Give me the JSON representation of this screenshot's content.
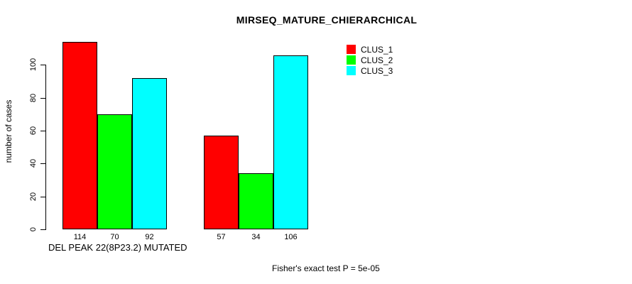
{
  "page": {
    "title": "MIRSEQ_MATURE_CHIERARCHICAL"
  },
  "chart_data": {
    "type": "bar",
    "title": "MIRSEQ_MATURE_CHIERARCHICAL",
    "xlabel": "DEL PEAK 22(8P23.2) MUTATED",
    "ylabel": "number of cases",
    "ylim": [
      0,
      120
    ],
    "yticks": [
      0,
      20,
      40,
      60,
      80,
      100
    ],
    "grid": false,
    "legend_position": "top-right-inside",
    "series": [
      {
        "name": "CLUS_1",
        "color": "#ff0000",
        "values": [
          114,
          57
        ]
      },
      {
        "name": "CLUS_2",
        "color": "#00ff00",
        "values": [
          70,
          34
        ]
      },
      {
        "name": "CLUS_3",
        "color": "#00ffff",
        "values": [
          92,
          106
        ]
      }
    ],
    "groups": [
      {
        "bar_labels": [
          "114",
          "70",
          "92"
        ]
      },
      {
        "bar_labels": [
          "57",
          "34",
          "106"
        ]
      }
    ],
    "pvalue_note": "Fisher's exact test P = 5e-05"
  }
}
